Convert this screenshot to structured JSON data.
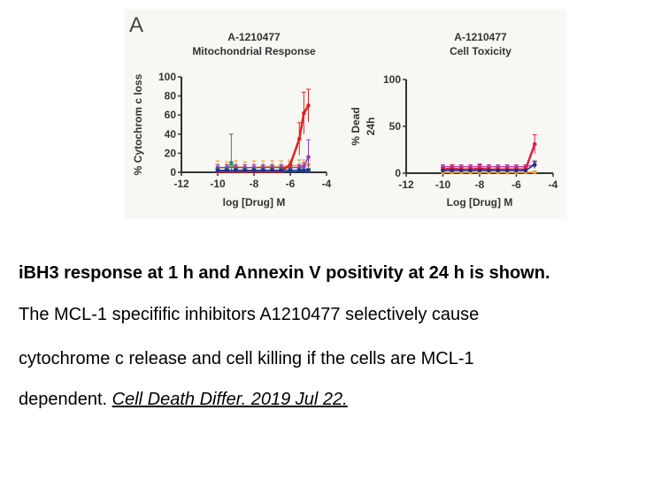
{
  "panel_label": "A",
  "chart_data": [
    {
      "type": "line",
      "title": [
        "A-1210477",
        "Mitochondrial Response"
      ],
      "xlabel": "log [Drug] M",
      "ylabel": "% Cytochrom c loss",
      "xlim": [
        -12,
        -4
      ],
      "ylim": [
        0,
        100
      ],
      "xticks": [
        "-12",
        "-10",
        "-8",
        "-6",
        "-4"
      ],
      "xtick_values": [
        -12,
        -10,
        -8,
        -6,
        -4
      ],
      "yticks": [
        "0",
        "20",
        "40",
        "60",
        "80",
        "100"
      ],
      "ytick_values": [
        0,
        20,
        40,
        60,
        80,
        100
      ],
      "series": [
        {
          "name": "orange",
          "color": "#f0a030",
          "x": [
            -10,
            -9.5,
            -9,
            -8.5,
            -8,
            -7.5,
            -7,
            -6.5,
            -6,
            -5.5,
            -5.25,
            -5
          ],
          "y": [
            5,
            5,
            6,
            5,
            5,
            6,
            6,
            6,
            7,
            7,
            7,
            8
          ],
          "err": [
            7,
            6,
            6,
            6,
            7,
            6,
            6,
            6,
            6,
            6,
            6,
            5
          ]
        },
        {
          "name": "purple",
          "color": "#9040b0",
          "x": [
            -10,
            -9.5,
            -9,
            -8.5,
            -8,
            -7.5,
            -7,
            -6.5,
            -6,
            -5.5,
            -5.25,
            -5
          ],
          "y": [
            5,
            5,
            5,
            5,
            5,
            5,
            5,
            5,
            5,
            5,
            6,
            16
          ],
          "err": [
            3,
            3,
            3,
            3,
            3,
            3,
            3,
            3,
            3,
            3,
            4,
            18
          ]
        },
        {
          "name": "green",
          "color": "#2a9060",
          "x": [
            -10,
            -9.5,
            -9.25,
            -9,
            -8.5,
            -8,
            -7.5,
            -7,
            -6.5,
            -6,
            -5.5,
            -5
          ],
          "y": [
            2,
            2,
            10,
            2,
            2,
            2,
            2,
            2,
            2,
            2,
            2,
            2
          ],
          "err": [
            2,
            2,
            30,
            2,
            2,
            2,
            2,
            2,
            2,
            2,
            2,
            2
          ]
        },
        {
          "name": "red",
          "color": "#e02020",
          "x": [
            -10,
            -9.5,
            -9,
            -8.5,
            -8,
            -7.5,
            -7,
            -6.5,
            -6,
            -5.5,
            -5.25,
            -5
          ],
          "y": [
            1,
            1,
            1,
            1,
            1,
            1,
            1,
            1,
            8,
            35,
            62,
            70
          ],
          "err": [
            2,
            2,
            2,
            2,
            2,
            2,
            2,
            2,
            3,
            17,
            22,
            17
          ]
        },
        {
          "name": "blue",
          "color": "#2030a0",
          "x": [
            -10,
            -9.5,
            -9,
            -8.5,
            -8,
            -7.5,
            -7,
            -6.5,
            -6,
            -5.5,
            -5.25,
            -5
          ],
          "y": [
            2,
            2,
            2,
            2,
            2,
            2,
            2,
            2,
            2,
            2,
            2,
            2
          ],
          "err": [
            1,
            1,
            1,
            1,
            1,
            1,
            1,
            1,
            1,
            1,
            1,
            1
          ]
        }
      ]
    },
    {
      "type": "line",
      "title": [
        "A-1210477",
        "Cell Toxicity"
      ],
      "xlabel": "Log [Drug] M",
      "ylabel": [
        "% Dead",
        "24h"
      ],
      "xlim": [
        -12,
        -4
      ],
      "ylim": [
        0,
        100
      ],
      "xticks": [
        "-12",
        "-10",
        "-8",
        "-6",
        "-4"
      ],
      "xtick_values": [
        -12,
        -10,
        -8,
        -6,
        -4
      ],
      "yticks": [
        "0",
        "50",
        "100"
      ],
      "ytick_values": [
        0,
        50,
        100
      ],
      "series": [
        {
          "name": "orange",
          "color": "#f0a030",
          "x": [
            -10,
            -9.5,
            -9,
            -8.5,
            -8,
            -7.5,
            -7,
            -6.5,
            -6,
            -5.5,
            -5
          ],
          "y": [
            1,
            1,
            1,
            1,
            1,
            1,
            1,
            1,
            1,
            1,
            1
          ],
          "err": [
            1,
            1,
            1,
            1,
            1,
            1,
            1,
            1,
            1,
            1,
            1
          ]
        },
        {
          "name": "purple",
          "color": "#c040a0",
          "x": [
            -10,
            -9.5,
            -9,
            -8.5,
            -8,
            -7.5,
            -7,
            -6.5,
            -6,
            -5.5,
            -5
          ],
          "y": [
            7,
            7,
            7,
            7,
            7,
            7,
            7,
            7,
            7,
            7,
            9
          ],
          "err": [
            2,
            2,
            2,
            2,
            3,
            2,
            2,
            2,
            2,
            2,
            3
          ]
        },
        {
          "name": "red",
          "color": "#e02040",
          "x": [
            -10,
            -9.5,
            -9,
            -8.5,
            -8,
            -7.5,
            -7,
            -6.5,
            -6,
            -5.5,
            -5
          ],
          "y": [
            4,
            5,
            4,
            4,
            5,
            4,
            4,
            4,
            4,
            4,
            31
          ],
          "err": [
            2,
            4,
            2,
            2,
            4,
            2,
            2,
            2,
            2,
            2,
            10
          ]
        },
        {
          "name": "blue",
          "color": "#203090",
          "x": [
            -10,
            -9.5,
            -9,
            -8.5,
            -8,
            -7.5,
            -7,
            -6.5,
            -6,
            -5.5,
            -5
          ],
          "y": [
            3,
            3,
            3,
            3,
            3,
            3,
            3,
            3,
            3,
            3,
            9
          ],
          "err": [
            1,
            1,
            1,
            1,
            1,
            1,
            1,
            1,
            1,
            1,
            4
          ]
        }
      ]
    }
  ],
  "caption": {
    "heading": "iBH3 response at 1 h and Annexin V positivity at 24 h is shown.",
    "line1": "The MCL-1 specifific inhibitors A1210477 selectively cause",
    "line2": "cytochrome c release and cell killing if the cells are MCL-1",
    "line3_text": "dependent. ",
    "citation": "Cell Death Differ. 2019 Jul 22."
  }
}
